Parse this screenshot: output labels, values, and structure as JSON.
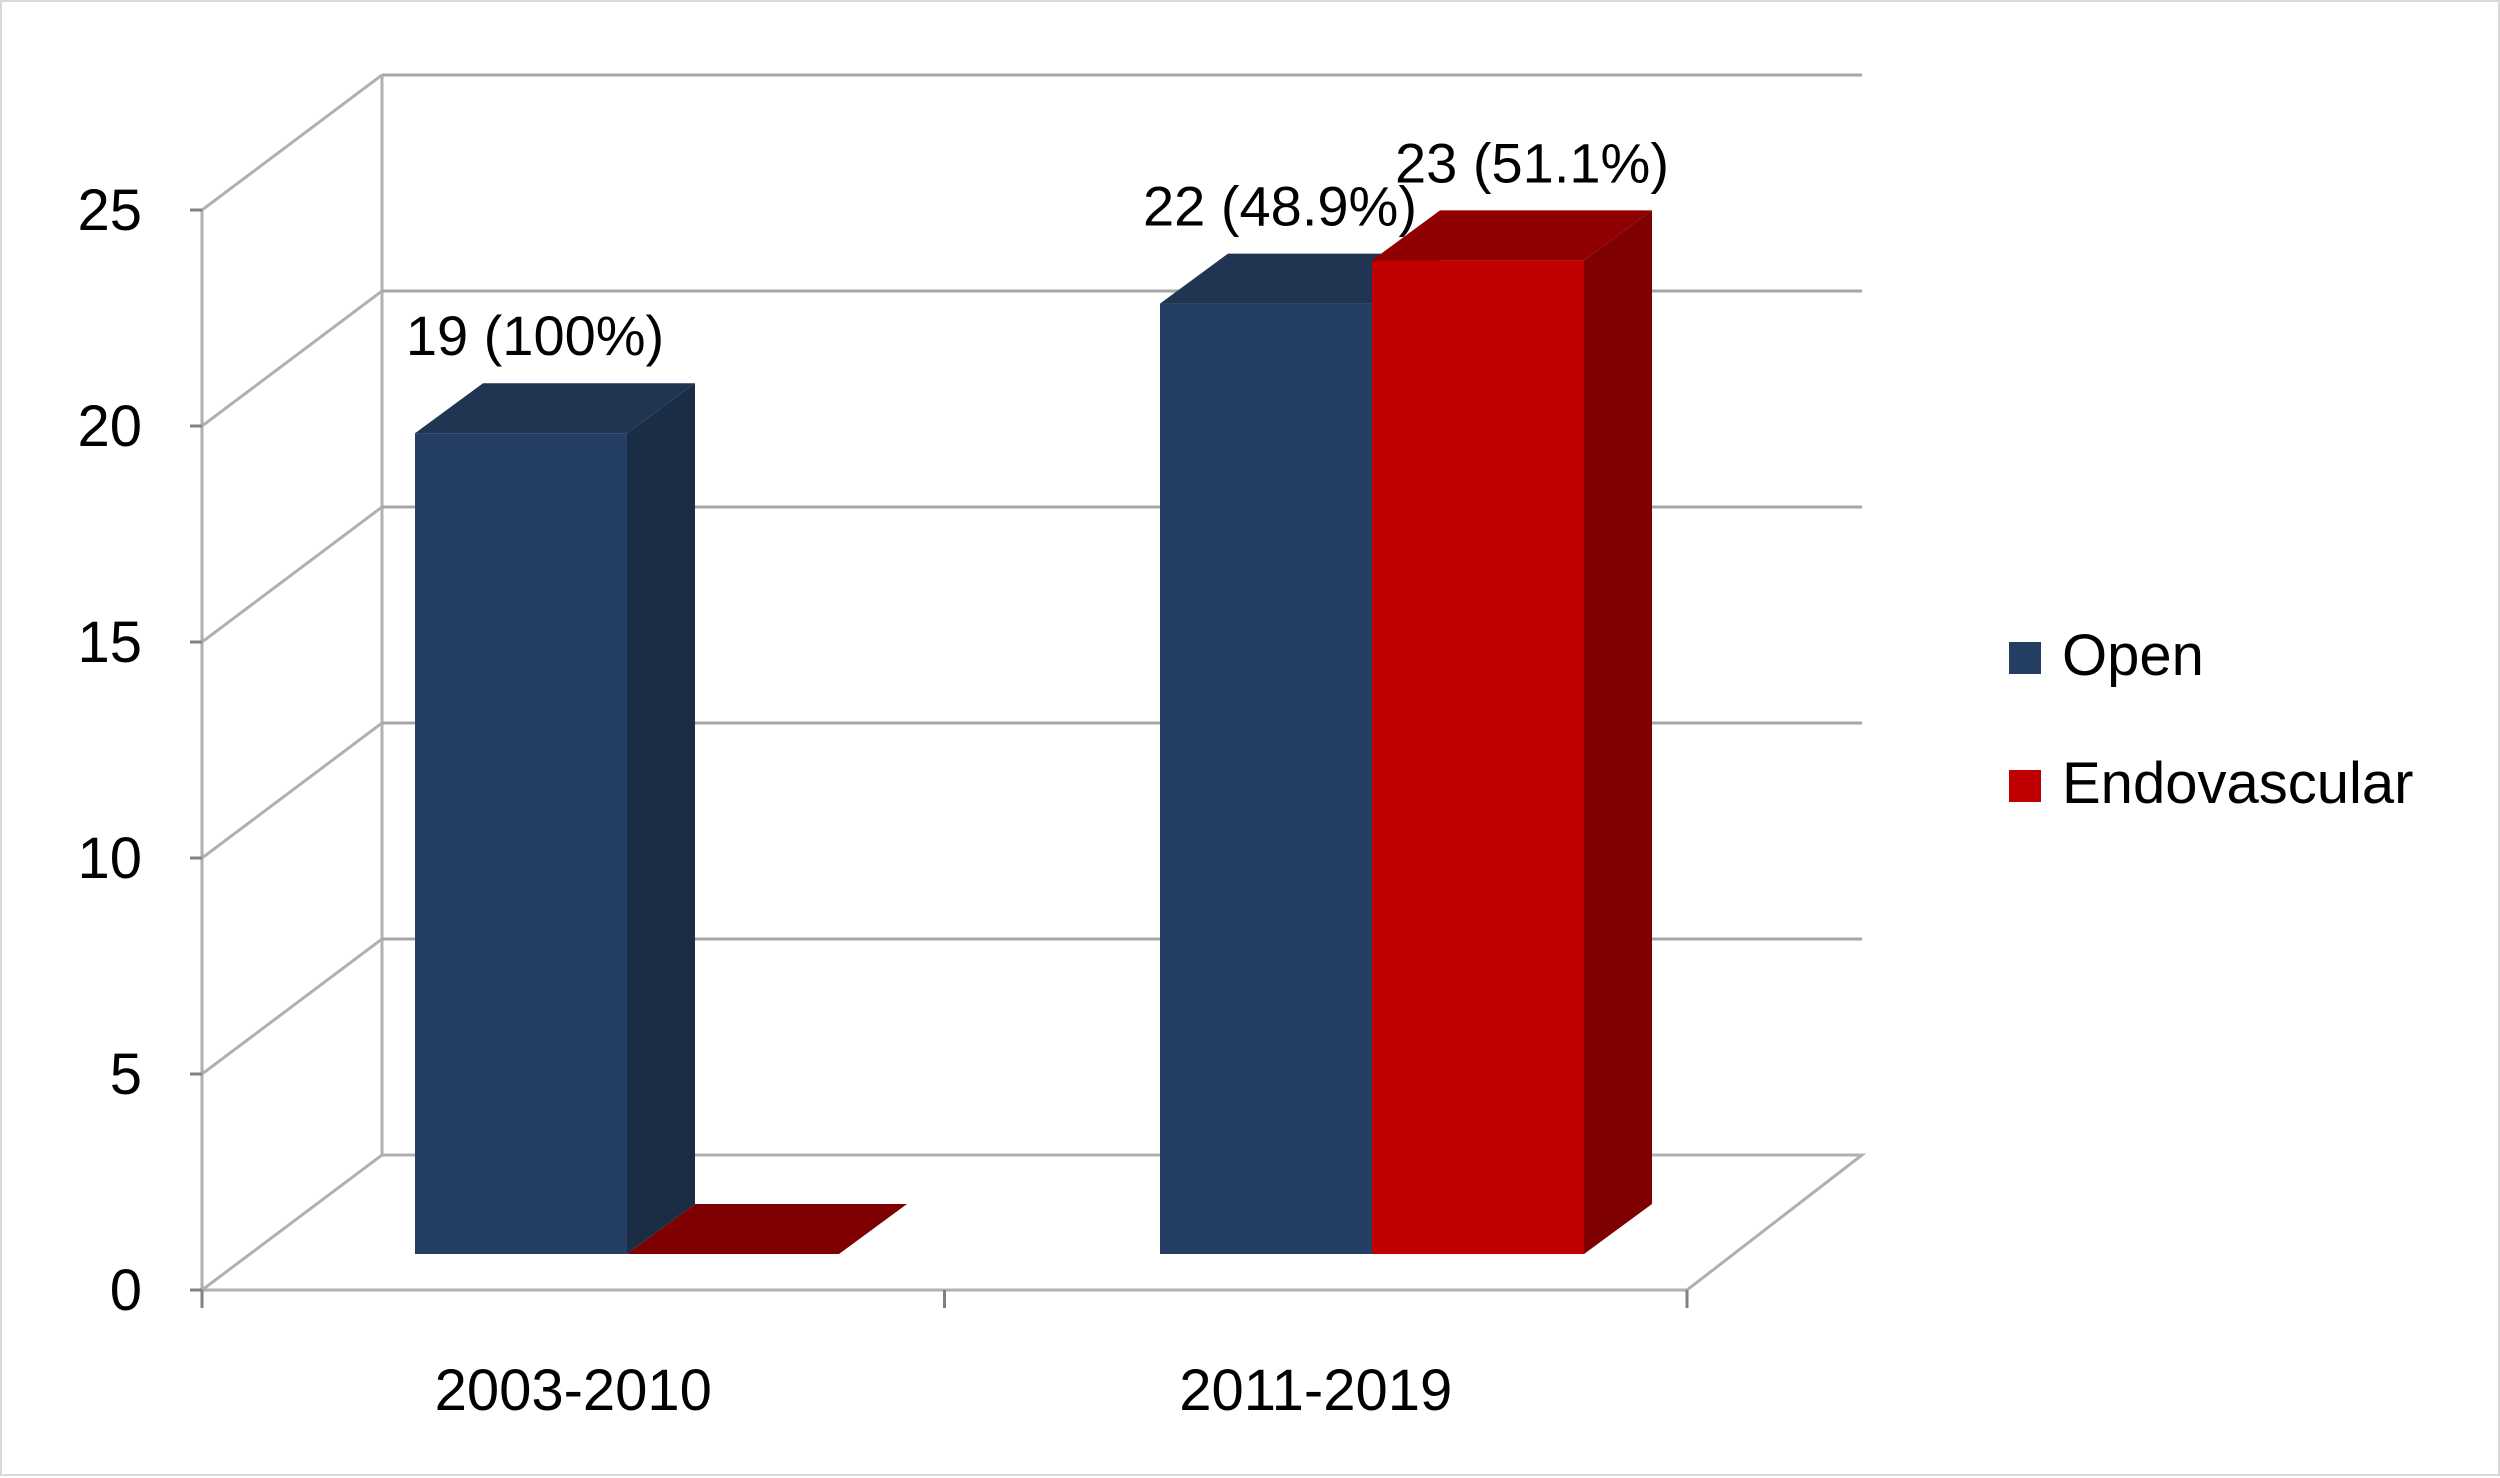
{
  "chart_data": {
    "type": "bar",
    "categories": [
      "2003-2010",
      "2011-2019"
    ],
    "series": [
      {
        "name": "Open",
        "values": [
          19,
          22
        ],
        "labels": [
          "19 (100%)",
          "22 (48.9%)"
        ],
        "color": "#243f63",
        "side_color": "#1b2d45",
        "top_color": "#1f3551"
      },
      {
        "name": "Endovascular",
        "values": [
          0,
          23
        ],
        "labels": [
          "",
          "23 (51.1%)"
        ],
        "color": "#c00000",
        "side_color": "#7f0000",
        "top_color": "#900000"
      }
    ],
    "title": "",
    "xlabel": "",
    "ylabel": "",
    "ylim": [
      0,
      25
    ],
    "yticks": [
      0,
      5,
      10,
      15,
      20,
      25
    ],
    "grid": true,
    "legend": "right",
    "style": "3d-clustered-column"
  }
}
